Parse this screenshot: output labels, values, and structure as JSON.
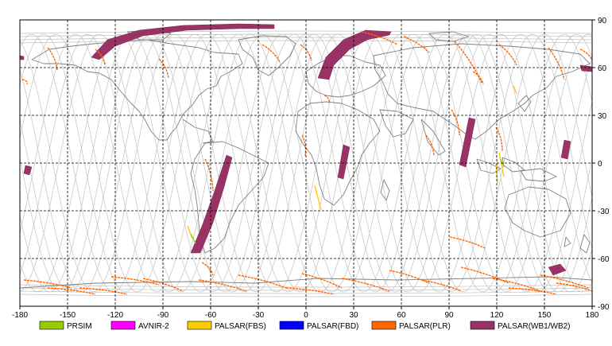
{
  "map": {
    "x_ticks": [
      "-180",
      "-150",
      "-120",
      "-90",
      "-60",
      "-30",
      "0",
      "30",
      "60",
      "90",
      "120",
      "150",
      "180"
    ],
    "y_ticks": [
      "90",
      "60",
      "30",
      "0",
      "-30",
      "-60",
      "-90"
    ],
    "legend": [
      {
        "label": "PRSIM",
        "color": "#99cc00"
      },
      {
        "label": "AVNIR-2",
        "color": "#ff00ff"
      },
      {
        "label": "PALSAR(FBS)",
        "color": "#ffcc00"
      },
      {
        "label": "PALSAR(FBD)",
        "color": "#0000ff"
      },
      {
        "label": "PALSAR(PLR)",
        "color": "#ff6600"
      },
      {
        "label": "PALSAR(WB1/WB2)",
        "color": "#993366"
      }
    ]
  }
}
